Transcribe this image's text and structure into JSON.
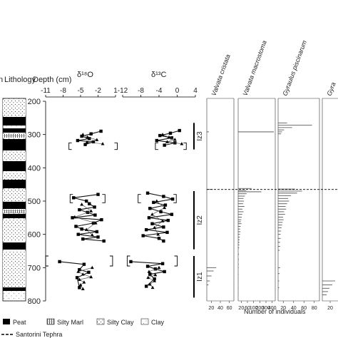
{
  "headers": {
    "lithology": "Lithology",
    "depth": "Depth (cm)",
    "d18o": "δ¹⁸O",
    "d13c": "δ¹³C",
    "left_edge_fragment": "n"
  },
  "depth_axis": {
    "ticks": [
      200,
      300,
      400,
      500,
      600,
      700,
      800
    ],
    "range": [
      200,
      800
    ]
  },
  "d18o_axis": {
    "ticks": [
      "-11",
      "-8",
      "-5",
      "-2",
      "1"
    ],
    "range": [
      -11,
      1
    ]
  },
  "d13c_axis": {
    "ticks": [
      "-12",
      "-8",
      "-4",
      "0",
      "4"
    ],
    "range": [
      -12,
      4
    ]
  },
  "zones": [
    {
      "label": "Iz3",
      "top": 265,
      "bottom": 345
    },
    {
      "label": "Iz2",
      "top": 470,
      "bottom": 645
    },
    {
      "label": "Iz1",
      "top": 665,
      "bottom": 790
    }
  ],
  "species": [
    {
      "name": "Valvata cristata",
      "ticks": [
        "20",
        "40",
        "60"
      ]
    },
    {
      "name": "Valvata macrostoma",
      "ticks": [
        "20",
        "60",
        "100",
        "200",
        "300",
        "400"
      ]
    },
    {
      "name": "Gyraulus piscinarum",
      "ticks": [
        "20",
        "40",
        "60",
        "80"
      ]
    },
    {
      "name": "Gyra",
      "ticks": [
        "20"
      ]
    }
  ],
  "count_axis_label": "Number of individuals",
  "legend": {
    "peat": "Peat",
    "silty_marl": "Silty Marl",
    "silty_clay": "Silty Clay",
    "clay": "Clay",
    "tephra": "Santorini Tephra"
  },
  "chart_data": [
    {
      "type": "line",
      "name": "d18o",
      "series": [
        {
          "marker": "square",
          "points": [
            [
              -1.5,
              290
            ],
            [
              -3.2,
              298
            ],
            [
              -4.8,
              305
            ],
            [
              -3.5,
              312
            ],
            [
              -5.5,
              318
            ],
            [
              -2.8,
              322
            ],
            [
              -4.2,
              330
            ]
          ]
        },
        {
          "marker": "triangle",
          "points": [
            [
              -4.6,
              300
            ],
            [
              -3.8,
              308
            ],
            [
              -2.2,
              316
            ],
            [
              -3.9,
              323
            ],
            [
              -1.2,
              328
            ]
          ]
        },
        {
          "marker": "square",
          "points": [
            [
              -2.0,
              480
            ],
            [
              -6.2,
              490
            ],
            [
              -4.0,
              500
            ],
            [
              -3.5,
              508
            ],
            [
              -2.6,
              518
            ],
            [
              -5.2,
              526
            ],
            [
              -3.8,
              534
            ],
            [
              -2.5,
              542
            ],
            [
              -6.4,
              550
            ],
            [
              -1.4,
              556
            ],
            [
              -2.8,
              566
            ],
            [
              -5.8,
              576
            ],
            [
              -4.8,
              584
            ],
            [
              -2.2,
              592
            ],
            [
              -5.4,
              600
            ],
            [
              -2.0,
              608
            ],
            [
              -4.6,
              614
            ],
            [
              -1.0,
              620
            ]
          ]
        },
        {
          "marker": "triangle",
          "points": [
            [
              -4.8,
              510
            ],
            [
              -3.2,
              530
            ],
            [
              -6.0,
              548
            ],
            [
              -2.4,
              566
            ],
            [
              -4.0,
              586
            ],
            [
              -3.0,
              602
            ]
          ]
        },
        {
          "marker": "square",
          "points": [
            [
              -8.6,
              682
            ],
            [
              -4.4,
              690
            ],
            [
              -5.2,
              706
            ],
            [
              -3.6,
              714
            ],
            [
              -5.6,
              730
            ],
            [
              -5.2,
              760
            ]
          ]
        },
        {
          "marker": "triangle",
          "points": [
            [
              -3.0,
              700
            ],
            [
              -5.4,
              712
            ],
            [
              -4.6,
              720
            ],
            [
              -3.2,
              728
            ],
            [
              -5.2,
              736
            ],
            [
              -4.4,
              744
            ],
            [
              -5.0,
              752
            ],
            [
              -4.6,
              764
            ]
          ]
        }
      ],
      "brackets": [
        {
          "top": 325,
          "bottom": 345,
          "xmin": -7.0,
          "xmax": 1.3
        },
        {
          "top": 480,
          "bottom": 505,
          "xmin": -6.8,
          "xmax": -0.8
        },
        {
          "top": 665,
          "bottom": 695,
          "xmin": -11.0,
          "xmax": 0.5
        }
      ]
    },
    {
      "type": "line",
      "name": "d13c",
      "series": [
        {
          "marker": "square",
          "points": [
            [
              0.5,
              288
            ],
            [
              -1.5,
              296
            ],
            [
              -3.8,
              303
            ],
            [
              -1.2,
              310
            ],
            [
              -4.5,
              318
            ],
            [
              -0.5,
              325
            ],
            [
              -2.8,
              332
            ]
          ]
        },
        {
          "marker": "triangle",
          "points": [
            [
              -3.2,
              300
            ],
            [
              -1.8,
              308
            ],
            [
              -0.5,
              315
            ],
            [
              -2.2,
              322
            ],
            [
              1.0,
              328
            ]
          ]
        },
        {
          "marker": "square",
          "points": [
            [
              -6.5,
              476
            ],
            [
              -3.0,
              486
            ],
            [
              -1.0,
              494
            ],
            [
              -5.2,
              504
            ],
            [
              -2.6,
              512
            ],
            [
              -6.0,
              522
            ],
            [
              -3.6,
              532
            ],
            [
              -1.2,
              540
            ],
            [
              -6.2,
              550
            ],
            [
              -2.0,
              558
            ],
            [
              -5.5,
              568
            ],
            [
              -3.0,
              578
            ],
            [
              -6.8,
              586
            ],
            [
              -2.2,
              594
            ],
            [
              -7.5,
              604
            ],
            [
              -4.0,
              612
            ],
            [
              -3.0,
              620
            ]
          ]
        },
        {
          "marker": "triangle",
          "points": [
            [
              -4.5,
              500
            ],
            [
              -2.8,
              520
            ],
            [
              -5.5,
              540
            ],
            [
              -3.2,
              560
            ],
            [
              -5.0,
              580
            ],
            [
              -4.2,
              600
            ]
          ]
        },
        {
          "marker": "square",
          "points": [
            [
              -10.2,
              682
            ],
            [
              -3.2,
              688
            ],
            [
              -6.5,
              696
            ],
            [
              -4.8,
              704
            ],
            [
              -2.8,
              712
            ],
            [
              -6.0,
              720
            ],
            [
              -5.0,
              734
            ],
            [
              -6.8,
              756
            ]
          ]
        },
        {
          "marker": "triangle",
          "points": [
            [
              -4.0,
              700
            ],
            [
              -6.2,
              712
            ],
            [
              -4.8,
              722
            ],
            [
              -6.4,
              730
            ],
            [
              -5.0,
              740
            ],
            [
              -6.0,
              750
            ],
            [
              -5.4,
              760
            ]
          ]
        }
      ],
      "brackets": [
        {
          "top": 325,
          "bottom": 345,
          "xmin": -4.8,
          "xmax": 2.0
        },
        {
          "top": 480,
          "bottom": 505,
          "xmin": -8.6,
          "xmax": -0.2
        },
        {
          "top": 665,
          "bottom": 695,
          "xmin": -11.0,
          "xmax": 0.0
        }
      ]
    },
    {
      "type": "bar",
      "name": "species_counts",
      "x_unit": "Number of individuals",
      "species": [
        {
          "name": "Valvata cristata",
          "xmax": 60,
          "bars": [
            [
              292,
              5
            ],
            [
              465,
              14
            ],
            [
              700,
              22
            ],
            [
              710,
              16
            ],
            [
              725,
              11
            ],
            [
              740,
              7
            ],
            [
              752,
              4
            ]
          ]
        },
        {
          "name": "Valvata macrostoma",
          "xmax": 400,
          "bars": [
            [
              292,
              400
            ],
            [
              462,
              150
            ],
            [
              468,
              90
            ],
            [
              472,
              260
            ],
            [
              478,
              95
            ],
            [
              485,
              75
            ],
            [
              492,
              60
            ],
            [
              500,
              65
            ],
            [
              508,
              55
            ],
            [
              516,
              70
            ],
            [
              524,
              48
            ],
            [
              532,
              60
            ],
            [
              540,
              45
            ],
            [
              548,
              40
            ],
            [
              556,
              35
            ],
            [
              562,
              30
            ],
            [
              568,
              38
            ],
            [
              576,
              28
            ],
            [
              584,
              22
            ],
            [
              592,
              25
            ],
            [
              600,
              20
            ],
            [
              608,
              18
            ],
            [
              616,
              16
            ],
            [
              624,
              14
            ],
            [
              632,
              12
            ],
            [
              640,
              10
            ],
            [
              660,
              8
            ],
            [
              675,
              6
            ],
            [
              690,
              5
            ],
            [
              700,
              5
            ],
            [
              720,
              4
            ],
            [
              740,
              3
            ],
            [
              760,
              3
            ],
            [
              780,
              2
            ]
          ]
        },
        {
          "name": "Gyraulus piscinarum",
          "xmax": 80,
          "bars": [
            [
              265,
              18
            ],
            [
              272,
              68
            ],
            [
              279,
              28
            ],
            [
              286,
              12
            ],
            [
              292,
              8
            ],
            [
              298,
              6
            ],
            [
              464,
              34
            ],
            [
              470,
              48
            ],
            [
              476,
              38
            ],
            [
              484,
              26
            ],
            [
              492,
              20
            ],
            [
              500,
              22
            ],
            [
              508,
              18
            ],
            [
              516,
              15
            ],
            [
              524,
              16
            ],
            [
              532,
              12
            ],
            [
              540,
              14
            ],
            [
              548,
              10
            ],
            [
              556,
              11
            ],
            [
              564,
              9
            ],
            [
              572,
              8
            ],
            [
              580,
              7
            ],
            [
              590,
              6
            ],
            [
              600,
              5
            ],
            [
              612,
              5
            ],
            [
              624,
              4
            ],
            [
              636,
              4
            ],
            [
              648,
              3
            ],
            [
              700,
              4
            ],
            [
              718,
              3
            ],
            [
              740,
              2
            ],
            [
              760,
              2
            ]
          ]
        },
        {
          "name": "Gyra",
          "xmax": 20,
          "bars": [
            [
              740,
              18
            ],
            [
              752,
              14
            ],
            [
              762,
              10
            ],
            [
              772,
              8
            ],
            [
              782,
              6
            ]
          ]
        }
      ]
    }
  ]
}
